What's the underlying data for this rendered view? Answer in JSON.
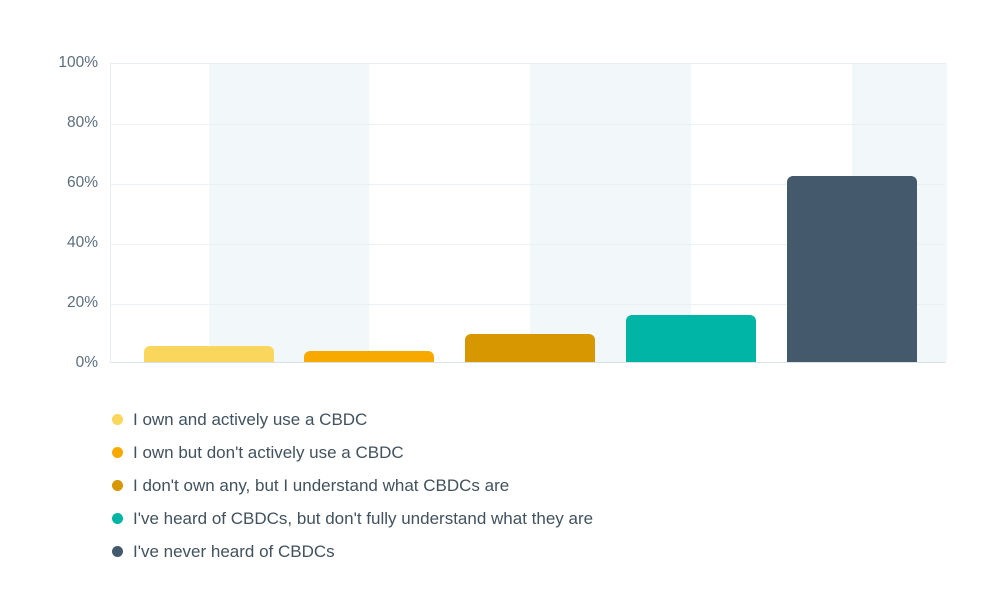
{
  "chart_data": {
    "type": "bar",
    "title": "",
    "categories": [
      "I own and actively use a CBDC",
      "I own but don't actively use a CBDC",
      "I don't own any, but I understand what CBDCs are",
      "I've heard of CBDCs, but don't fully understand what they are",
      "I've never heard of CBDCs"
    ],
    "values": [
      5.3,
      3.7,
      9.3,
      15.7,
      62
    ],
    "unit": "%",
    "ylabel": "",
    "xlabel": "",
    "ylim": [
      0,
      100
    ],
    "ytick_labels": [
      "0%",
      "20%",
      "40%",
      "60%",
      "80%",
      "100%"
    ],
    "grid": "horizontal",
    "legend_position": "bottom",
    "colors": [
      "#FBD65D",
      "#F7A900",
      "#D69700",
      "#00B4A6",
      "#44596B"
    ],
    "stripe_color": "#F2F7FA"
  }
}
